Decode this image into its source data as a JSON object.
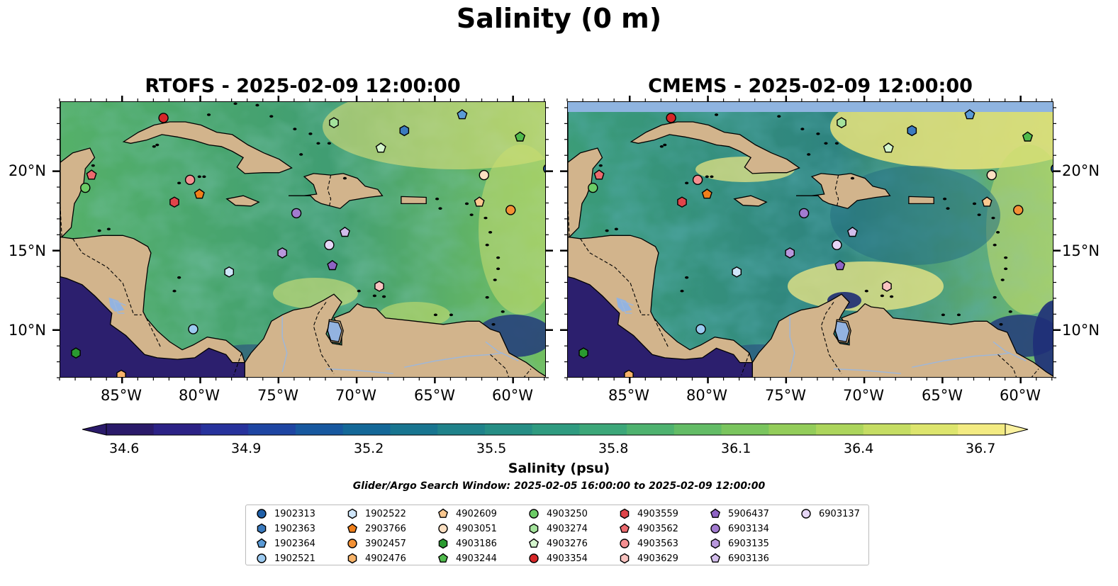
{
  "title": "Salinity (0 m)",
  "panels": [
    {
      "title": "RTOFS - 2025-02-09 12:00:00",
      "has_top_band": false
    },
    {
      "title": "CMEMS - 2025-02-09 12:00:00",
      "has_top_band": true
    }
  ],
  "lon_ticks": [
    "85°W",
    "80°W",
    "75°W",
    "70°W",
    "65°W",
    "60°W"
  ],
  "lat_ticks": [
    "20°N",
    "15°N",
    "10°N"
  ],
  "colorbar": {
    "label": "Salinity (psu)",
    "tick_labels": [
      "34.6",
      "34.9",
      "35.2",
      "35.5",
      "35.8",
      "36.1",
      "36.4",
      "36.7"
    ],
    "range": [
      34.6,
      36.7
    ],
    "extend": "both",
    "colormap": "haline"
  },
  "colors": {
    "land": "#d2b48c",
    "coastline": "#000000",
    "rivers": "#9fb7d8",
    "top_band": "#8fb4e0",
    "low_salinity": "#2a1b6b",
    "high_salinity": "#f6ee87"
  },
  "subtitle": "Glider/Argo Search Window: 2025-02-05 16:00:00 to 2025-02-09 12:00:00",
  "legend": [
    {
      "id": "1902313",
      "marker": "circle",
      "color": "#1f5fa8"
    },
    {
      "id": "1902363",
      "marker": "hexagon",
      "color": "#3b7bbf"
    },
    {
      "id": "1902364",
      "marker": "pentagon",
      "color": "#5a9ad6"
    },
    {
      "id": "1902521",
      "marker": "circle",
      "color": "#9ccaf0"
    },
    {
      "id": "1902522",
      "marker": "hexagon",
      "color": "#cfe6fa"
    },
    {
      "id": "2903766",
      "marker": "pentagon",
      "color": "#f07f1a"
    },
    {
      "id": "3902457",
      "marker": "circle",
      "color": "#f39135"
    },
    {
      "id": "4902476",
      "marker": "hexagon",
      "color": "#f8b46a"
    },
    {
      "id": "4902609",
      "marker": "pentagon",
      "color": "#fbc890"
    },
    {
      "id": "4903051",
      "marker": "circle",
      "color": "#fde0c2"
    },
    {
      "id": "4903186",
      "marker": "hexagon",
      "color": "#2a9a30"
    },
    {
      "id": "4903244",
      "marker": "pentagon",
      "color": "#50bb4c"
    },
    {
      "id": "4903250",
      "marker": "circle",
      "color": "#6ccc66"
    },
    {
      "id": "4903274",
      "marker": "hexagon",
      "color": "#a4e39c"
    },
    {
      "id": "4903276",
      "marker": "pentagon",
      "color": "#d4f5cd"
    },
    {
      "id": "4903354",
      "marker": "circle",
      "color": "#d62728"
    },
    {
      "id": "4903559",
      "marker": "hexagon",
      "color": "#e0454a"
    },
    {
      "id": "4903562",
      "marker": "pentagon",
      "color": "#ec6a6e"
    },
    {
      "id": "4903563",
      "marker": "circle",
      "color": "#f58f91"
    },
    {
      "id": "4903629",
      "marker": "hexagon",
      "color": "#f9c3c0"
    },
    {
      "id": "5906437",
      "marker": "pentagon",
      "color": "#8e63c4"
    },
    {
      "id": "6903134",
      "marker": "circle",
      "color": "#a27bd0"
    },
    {
      "id": "6903135",
      "marker": "hexagon",
      "color": "#b897dc"
    },
    {
      "id": "6903136",
      "marker": "pentagon",
      "color": "#d2bdeb"
    },
    {
      "id": "6903137",
      "marker": "circle",
      "color": "#e6d6f6"
    }
  ],
  "floats": [
    {
      "id": "4903354",
      "lon": -82.4,
      "lat": 23.4
    },
    {
      "id": "1902364",
      "lon": -63.3,
      "lat": 23.6
    },
    {
      "id": "4903274",
      "lon": -71.5,
      "lat": 23.1
    },
    {
      "id": "1902363",
      "lon": -67.0,
      "lat": 22.6
    },
    {
      "id": "4903244",
      "lon": -59.6,
      "lat": 22.2
    },
    {
      "id": "4903276",
      "lon": -68.5,
      "lat": 21.5
    },
    {
      "id": "1902313",
      "lon": -57.8,
      "lat": 20.2
    },
    {
      "id": "4903562",
      "lon": -87.0,
      "lat": 19.8
    },
    {
      "id": "4903051",
      "lon": -61.9,
      "lat": 19.8
    },
    {
      "id": "4903563",
      "lon": -80.7,
      "lat": 19.5
    },
    {
      "id": "4903250",
      "lon": -87.4,
      "lat": 19.0
    },
    {
      "id": "2903766",
      "lon": -80.1,
      "lat": 18.6
    },
    {
      "id": "4903559",
      "lon": -81.7,
      "lat": 18.1
    },
    {
      "id": "4902609",
      "lon": -62.2,
      "lat": 18.1
    },
    {
      "id": "3902457",
      "lon": -60.2,
      "lat": 17.6
    },
    {
      "id": "6903134",
      "lon": -73.9,
      "lat": 17.4
    },
    {
      "id": "6903136",
      "lon": -70.8,
      "lat": 16.2
    },
    {
      "id": "6903137",
      "lon": -71.8,
      "lat": 15.4
    },
    {
      "id": "6903135",
      "lon": -74.8,
      "lat": 14.9
    },
    {
      "id": "5906437",
      "lon": -71.6,
      "lat": 14.1
    },
    {
      "id": "1902522",
      "lon": -78.2,
      "lat": 13.7
    },
    {
      "id": "4903629",
      "lon": -68.6,
      "lat": 12.8
    },
    {
      "id": "1902521",
      "lon": -80.5,
      "lat": 10.1
    },
    {
      "id": "4903186",
      "lon": -88.0,
      "lat": 8.6
    },
    {
      "id": "4902476",
      "lon": -85.1,
      "lat": 7.2
    }
  ]
}
